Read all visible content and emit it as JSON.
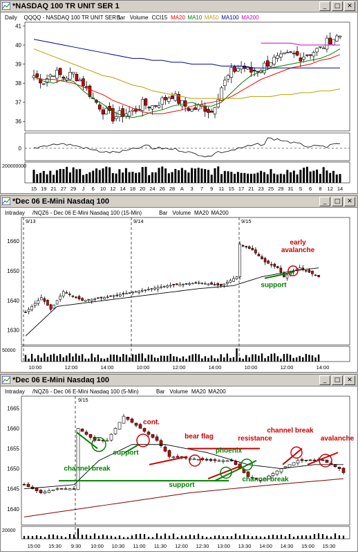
{
  "windows": [
    {
      "title": "*NASDAQ 100 TR UNIT SER 1",
      "header": {
        "interval": "Daily",
        "symbol": "QQQQ - NASDAQ 100 TR UNIT SER 1",
        "bar": "Bar",
        "volume": "Volume",
        "cci": "CCI15",
        "ma_labels": [
          {
            "text": "MA20",
            "color": "#ff0000"
          },
          {
            "text": "MA10",
            "color": "#008000"
          },
          {
            "text": "MA50",
            "color": "#b8a000"
          },
          {
            "text": "MA100",
            "color": "#000099"
          },
          {
            "text": "MA200",
            "color": "#cc00cc"
          }
        ]
      }
    },
    {
      "title": "*Dec 06  E-Mini Nasdaq 100",
      "header": {
        "interval": "Intraday",
        "symbol": "/NQZ6 - Dec 06  E-Mini Nasdaq 100  (15-Min)",
        "bar": "Bar",
        "volume": "Volume",
        "ma_labels": [
          {
            "text": "MA20",
            "color": "#000000"
          },
          {
            "text": "MA200",
            "color": "#000000"
          }
        ]
      }
    },
    {
      "title": "*Dec 06  E-Mini Nasdaq 100",
      "header": {
        "interval": "Intraday",
        "symbol": "/NQZ6 - Dec 06  E-Mini Nasdaq 100  (5-Min)",
        "bar": "Bar",
        "volume": "Volume",
        "ma_labels": [
          {
            "text": "MA20",
            "color": "#000000"
          },
          {
            "text": "MA200",
            "color": "#000000"
          }
        ]
      }
    }
  ],
  "window_buttons": {
    "minimize": "_",
    "maximize": "□",
    "close": "✕"
  },
  "chart_data": [
    {
      "type": "candlestick",
      "title": "QQQQ - NASDAQ 100 TR UNIT SER 1",
      "y_ticks": [
        41,
        40,
        39,
        38,
        37,
        36
      ],
      "ylim": [
        35.5,
        41.2
      ],
      "x_ticks": [
        "15",
        "19",
        "21",
        "27",
        "29",
        "J",
        "6",
        "10",
        "12",
        "14",
        "18",
        "20",
        "24",
        "26",
        "28",
        "A",
        "3",
        "7",
        "9",
        "11",
        "15",
        "17",
        "21",
        "23",
        "25",
        "29",
        "31",
        "S",
        "6",
        "8",
        "12",
        "14"
      ],
      "cci_ticks": [
        "0"
      ],
      "volume_ticks": [
        "200000000"
      ],
      "series": [
        {
          "name": "MA20",
          "color": "#ff0000",
          "values": [
            38.3,
            38.2,
            38.2,
            38.1,
            38.0,
            37.8,
            37.6,
            37.4,
            37.1,
            36.9,
            36.7,
            36.5,
            36.4,
            36.4,
            36.5,
            36.6,
            36.8,
            36.9,
            37.0,
            37.1,
            37.3,
            37.6,
            37.9,
            38.2,
            38.4,
            38.6,
            38.8,
            38.9,
            39.0,
            39.2,
            39.3,
            39.5
          ]
        },
        {
          "name": "MA10",
          "color": "#008000",
          "values": [
            38.4,
            38.1,
            38.0,
            38.2,
            38.1,
            37.6,
            37.2,
            36.9,
            36.5,
            36.3,
            36.2,
            36.3,
            36.5,
            36.6,
            36.8,
            36.9,
            37.0,
            36.8,
            36.8,
            37.0,
            37.5,
            38.0,
            38.4,
            38.6,
            38.8,
            38.9,
            39.0,
            39.1,
            39.2,
            39.3,
            39.5,
            39.8
          ]
        },
        {
          "name": "MA50",
          "color": "#b8a000",
          "values": [
            39.8,
            39.6,
            39.4,
            39.2,
            39.0,
            38.8,
            38.6,
            38.4,
            38.3,
            38.1,
            37.9,
            37.8,
            37.6,
            37.5,
            37.4,
            37.3,
            37.2,
            37.2,
            37.2,
            37.2,
            37.2,
            37.2,
            37.3,
            37.3,
            37.3,
            37.4,
            37.4,
            37.5,
            37.5,
            37.6,
            37.6,
            37.7
          ]
        },
        {
          "name": "MA100",
          "color": "#000099",
          "values": [
            40.3,
            40.2,
            40.1,
            40.0,
            39.9,
            39.8,
            39.7,
            39.6,
            39.5,
            39.4,
            39.3,
            39.3,
            39.2,
            39.2,
            39.1,
            39.1,
            39.0,
            39.0,
            39.0,
            38.9,
            38.9,
            38.9,
            38.8,
            38.8,
            38.8,
            38.8,
            38.8,
            38.8,
            38.8,
            38.8,
            38.8,
            38.8
          ]
        },
        {
          "name": "MA200",
          "color": "#cc00cc",
          "values": [
            null,
            null,
            null,
            null,
            null,
            null,
            null,
            null,
            null,
            null,
            null,
            null,
            null,
            null,
            null,
            null,
            null,
            null,
            null,
            null,
            null,
            null,
            null,
            40.1,
            40.1,
            40.1,
            40.1,
            40.0,
            40.0,
            40.0,
            40.0,
            40.0
          ]
        }
      ],
      "close": [
        38.4,
        38.1,
        38.6,
        38.3,
        38.5,
        38.0,
        37.2,
        36.6,
        36.2,
        36.4,
        36.5,
        36.9,
        36.8,
        37.1,
        37.4,
        36.9,
        36.6,
        36.8,
        36.5,
        37.8,
        38.6,
        38.9,
        38.6,
        38.8,
        39.2,
        39.3,
        39.5,
        39.4,
        39.6,
        39.8,
        40.3,
        40.5
      ]
    },
    {
      "type": "candlestick",
      "title": "/NQZ6 - Dec 06  E-Mini Nasdaq 100  (15-Min)",
      "y_ticks": [
        1660,
        1650,
        1640,
        1630
      ],
      "ylim": [
        1625,
        1668
      ],
      "session_labels": [
        "9/13",
        "9/14",
        "9/15"
      ],
      "x_ticks": [
        "10:00",
        "12:00",
        "14:00",
        "10:00",
        "12:00",
        "14:00",
        "10:00",
        "12:00",
        "14:00"
      ],
      "volume_ticks": [
        "50000"
      ],
      "annotations": [
        {
          "text": "early\navalanche",
          "color": "#cc0000"
        },
        {
          "text": "support",
          "color": "#008000"
        }
      ]
    },
    {
      "type": "candlestick",
      "title": "/NQZ6 - Dec 06  E-Mini Nasdaq 100  (5-Min)",
      "y_ticks": [
        1665,
        1660,
        1655,
        1650,
        1645,
        1640
      ],
      "ylim": [
        1636,
        1668
      ],
      "session_labels": [
        "9/15"
      ],
      "x_ticks": [
        "15:00",
        "15:30",
        "9:30",
        "10:00",
        "10:30",
        "11:00",
        "11:30",
        "12:00",
        "12:30",
        "13:00",
        "13:30",
        "14:00",
        "14:30",
        "15:00",
        "15:30"
      ],
      "volume_ticks": [
        "20000"
      ],
      "annotations": [
        {
          "text": "channel break",
          "color": "#008000"
        },
        {
          "text": "support",
          "color": "#008000"
        },
        {
          "text": "cont.",
          "color": "#cc0000"
        },
        {
          "text": "bear flag",
          "color": "#cc0000"
        },
        {
          "text": "phoenix",
          "color": "#008000"
        },
        {
          "text": "resistance",
          "color": "#cc0000"
        },
        {
          "text": "channel break",
          "color": "#cc0000"
        },
        {
          "text": "avalanche",
          "color": "#cc0000"
        },
        {
          "text": "support",
          "color": "#008000"
        },
        {
          "text": "channel break",
          "color": "#008000"
        }
      ]
    }
  ]
}
